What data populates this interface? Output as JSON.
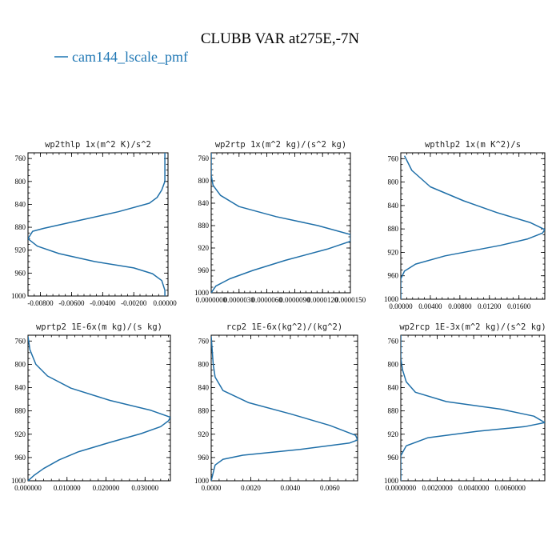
{
  "figure": {
    "title": "CLUBB VAR at275E,-7N",
    "legend_label": "cam144_lscale_pmf",
    "series_color": "#1f77b4"
  },
  "chart_data": [
    {
      "type": "line",
      "title": "wp2thlp  1x(m^2 K)/s^2",
      "series_name": "cam144_lscale_pmf",
      "xlim": [
        -0.0088,
        0.0002
      ],
      "ylim": [
        1000,
        750
      ],
      "x_ticks": [
        -0.008,
        -0.006,
        -0.004,
        -0.002,
        0.0
      ],
      "x_tick_labels": [
        "-0.00800",
        "-0.00600",
        "-0.00400",
        "-0.00200",
        "0.00000"
      ],
      "y_ticks": [
        760,
        800,
        840,
        880,
        920,
        960,
        1000
      ],
      "y_tick_labels": [
        "760",
        "800",
        "840",
        "880",
        "920",
        "960",
        "1000"
      ],
      "x": [
        0.0,
        0.0,
        0.0,
        -0.0002,
        -0.0005,
        -0.001,
        -0.003,
        -0.0055,
        -0.0078,
        -0.0085,
        -0.0088,
        -0.0082,
        -0.0068,
        -0.0045,
        -0.002,
        -0.0008,
        -0.0002,
        0.0,
        0.0
      ],
      "y": [
        750,
        780,
        800,
        815,
        828,
        838,
        853,
        868,
        882,
        887,
        900,
        913,
        926,
        940,
        951,
        961,
        973,
        990,
        1000
      ]
    },
    {
      "type": "line",
      "title": "wp2rtp  1x(m^2 kg)/(s^2 kg)",
      "series_name": "cam144_lscale_pmf",
      "xlim": [
        0.0,
        1.5e-05
      ],
      "ylim": [
        1000,
        750
      ],
      "x_ticks": [
        0.0,
        3e-06,
        6e-06,
        9e-06,
        1.2e-05,
        1.5e-05
      ],
      "x_tick_labels": [
        "0.0000000",
        "0.0000030",
        "0.0000060",
        "0.0000090",
        "0.0000120",
        "0.0000150"
      ],
      "y_ticks": [
        760,
        800,
        840,
        880,
        920,
        960,
        1000
      ],
      "y_tick_labels": [
        "760",
        "800",
        "840",
        "880",
        "920",
        "960",
        "1000"
      ],
      "x": [
        0.0,
        0.0,
        2e-07,
        1e-06,
        3e-06,
        7e-06,
        1.15e-05,
        1.5e-05,
        1.5e-05,
        1.25e-05,
        8e-06,
        4.5e-06,
        2e-06,
        5e-07,
        0.0
      ],
      "y": [
        750,
        790,
        808,
        826,
        846,
        864,
        880,
        896,
        908,
        922,
        942,
        960,
        975,
        988,
        1000
      ]
    },
    {
      "type": "line",
      "title": "wpthlp2  1x(m K^2)/s",
      "series_name": "cam144_lscale_pmf",
      "xlim": [
        0.0,
        0.0195
      ],
      "ylim": [
        1000,
        750
      ],
      "x_ticks": [
        0.0,
        0.004,
        0.008,
        0.012,
        0.016
      ],
      "x_tick_labels": [
        "0.00000",
        "0.00400",
        "0.00800",
        "0.01200",
        "0.01600"
      ],
      "y_ticks": [
        760,
        800,
        840,
        880,
        920,
        960,
        1000
      ],
      "y_tick_labels": [
        "760",
        "800",
        "840",
        "880",
        "920",
        "960",
        "1000"
      ],
      "x": [
        0.0005,
        0.0015,
        0.004,
        0.0085,
        0.013,
        0.0175,
        0.0195,
        0.0192,
        0.0172,
        0.0135,
        0.006,
        0.002,
        0.0005,
        0.0,
        0.0
      ],
      "y": [
        755,
        780,
        808,
        832,
        852,
        869,
        881,
        887,
        897,
        908,
        926,
        940,
        952,
        965,
        1000
      ]
    },
    {
      "type": "line",
      "title": "wprtp2  1E-6x(m kg)/(s kg)",
      "series_name": "cam144_lscale_pmf",
      "xlim": [
        0.0,
        0.0365
      ],
      "ylim": [
        1000,
        750
      ],
      "x_ticks": [
        0.0,
        0.01,
        0.02,
        0.03
      ],
      "x_tick_labels": [
        "0.000000",
        "0.010000",
        "0.020000",
        "0.030000"
      ],
      "y_ticks": [
        760,
        800,
        840,
        880,
        920,
        960,
        1000
      ],
      "y_tick_labels": [
        "760",
        "800",
        "840",
        "880",
        "920",
        "960",
        "1000"
      ],
      "x": [
        0.0,
        0.0005,
        0.002,
        0.005,
        0.011,
        0.021,
        0.0315,
        0.0365,
        0.036,
        0.034,
        0.029,
        0.021,
        0.013,
        0.008,
        0.004,
        0.0015,
        0.0
      ],
      "y": [
        752,
        775,
        800,
        820,
        841,
        862,
        879,
        891,
        897,
        907,
        919,
        934,
        950,
        964,
        979,
        991,
        1000
      ]
    },
    {
      "type": "line",
      "title": "rcp2  1E-6x(kg^2)/(kg^2)",
      "series_name": "cam144_lscale_pmf",
      "xlim": [
        0.0,
        0.0074
      ],
      "ylim": [
        1000,
        750
      ],
      "x_ticks": [
        0.0,
        0.002,
        0.004,
        0.006
      ],
      "x_tick_labels": [
        "0.0000",
        "0.0020",
        "0.0040",
        "0.0060"
      ],
      "y_ticks": [
        760,
        800,
        840,
        880,
        920,
        960,
        1000
      ],
      "y_tick_labels": [
        "760",
        "800",
        "840",
        "880",
        "920",
        "960",
        "1000"
      ],
      "x": [
        0.0,
        0.0001,
        0.0002,
        0.0006,
        0.0019,
        0.004,
        0.006,
        0.0073,
        0.0074,
        0.007,
        0.0045,
        0.0016,
        0.0006,
        0.0002,
        0.0
      ],
      "y": [
        752,
        800,
        822,
        845,
        866,
        885,
        905,
        922,
        930,
        935,
        946,
        956,
        963,
        973,
        1000
      ]
    },
    {
      "type": "line",
      "title": "wp2rcp  1E-3x(m^2 kg)/(s^2 kg)",
      "series_name": "cam144_lscale_pmf",
      "xlim": [
        0.0,
        0.0079
      ],
      "ylim": [
        1000,
        750
      ],
      "x_ticks": [
        0.0,
        0.002,
        0.004,
        0.006
      ],
      "x_tick_labels": [
        "0.0000000",
        "0.0020000",
        "0.0040000",
        "0.0060000"
      ],
      "y_ticks": [
        760,
        800,
        840,
        880,
        920,
        960,
        1000
      ],
      "y_tick_labels": [
        "760",
        "800",
        "840",
        "880",
        "920",
        "960",
        "1000"
      ],
      "x": [
        0.0,
        0.0,
        0.0001,
        0.0003,
        0.0008,
        0.0025,
        0.0055,
        0.0073,
        0.0079,
        0.0068,
        0.0042,
        0.0015,
        0.0003,
        0.0,
        0.0
      ],
      "y": [
        750,
        790,
        810,
        830,
        848,
        864,
        877,
        889,
        900,
        907,
        915,
        926,
        940,
        957,
        1000
      ]
    }
  ]
}
